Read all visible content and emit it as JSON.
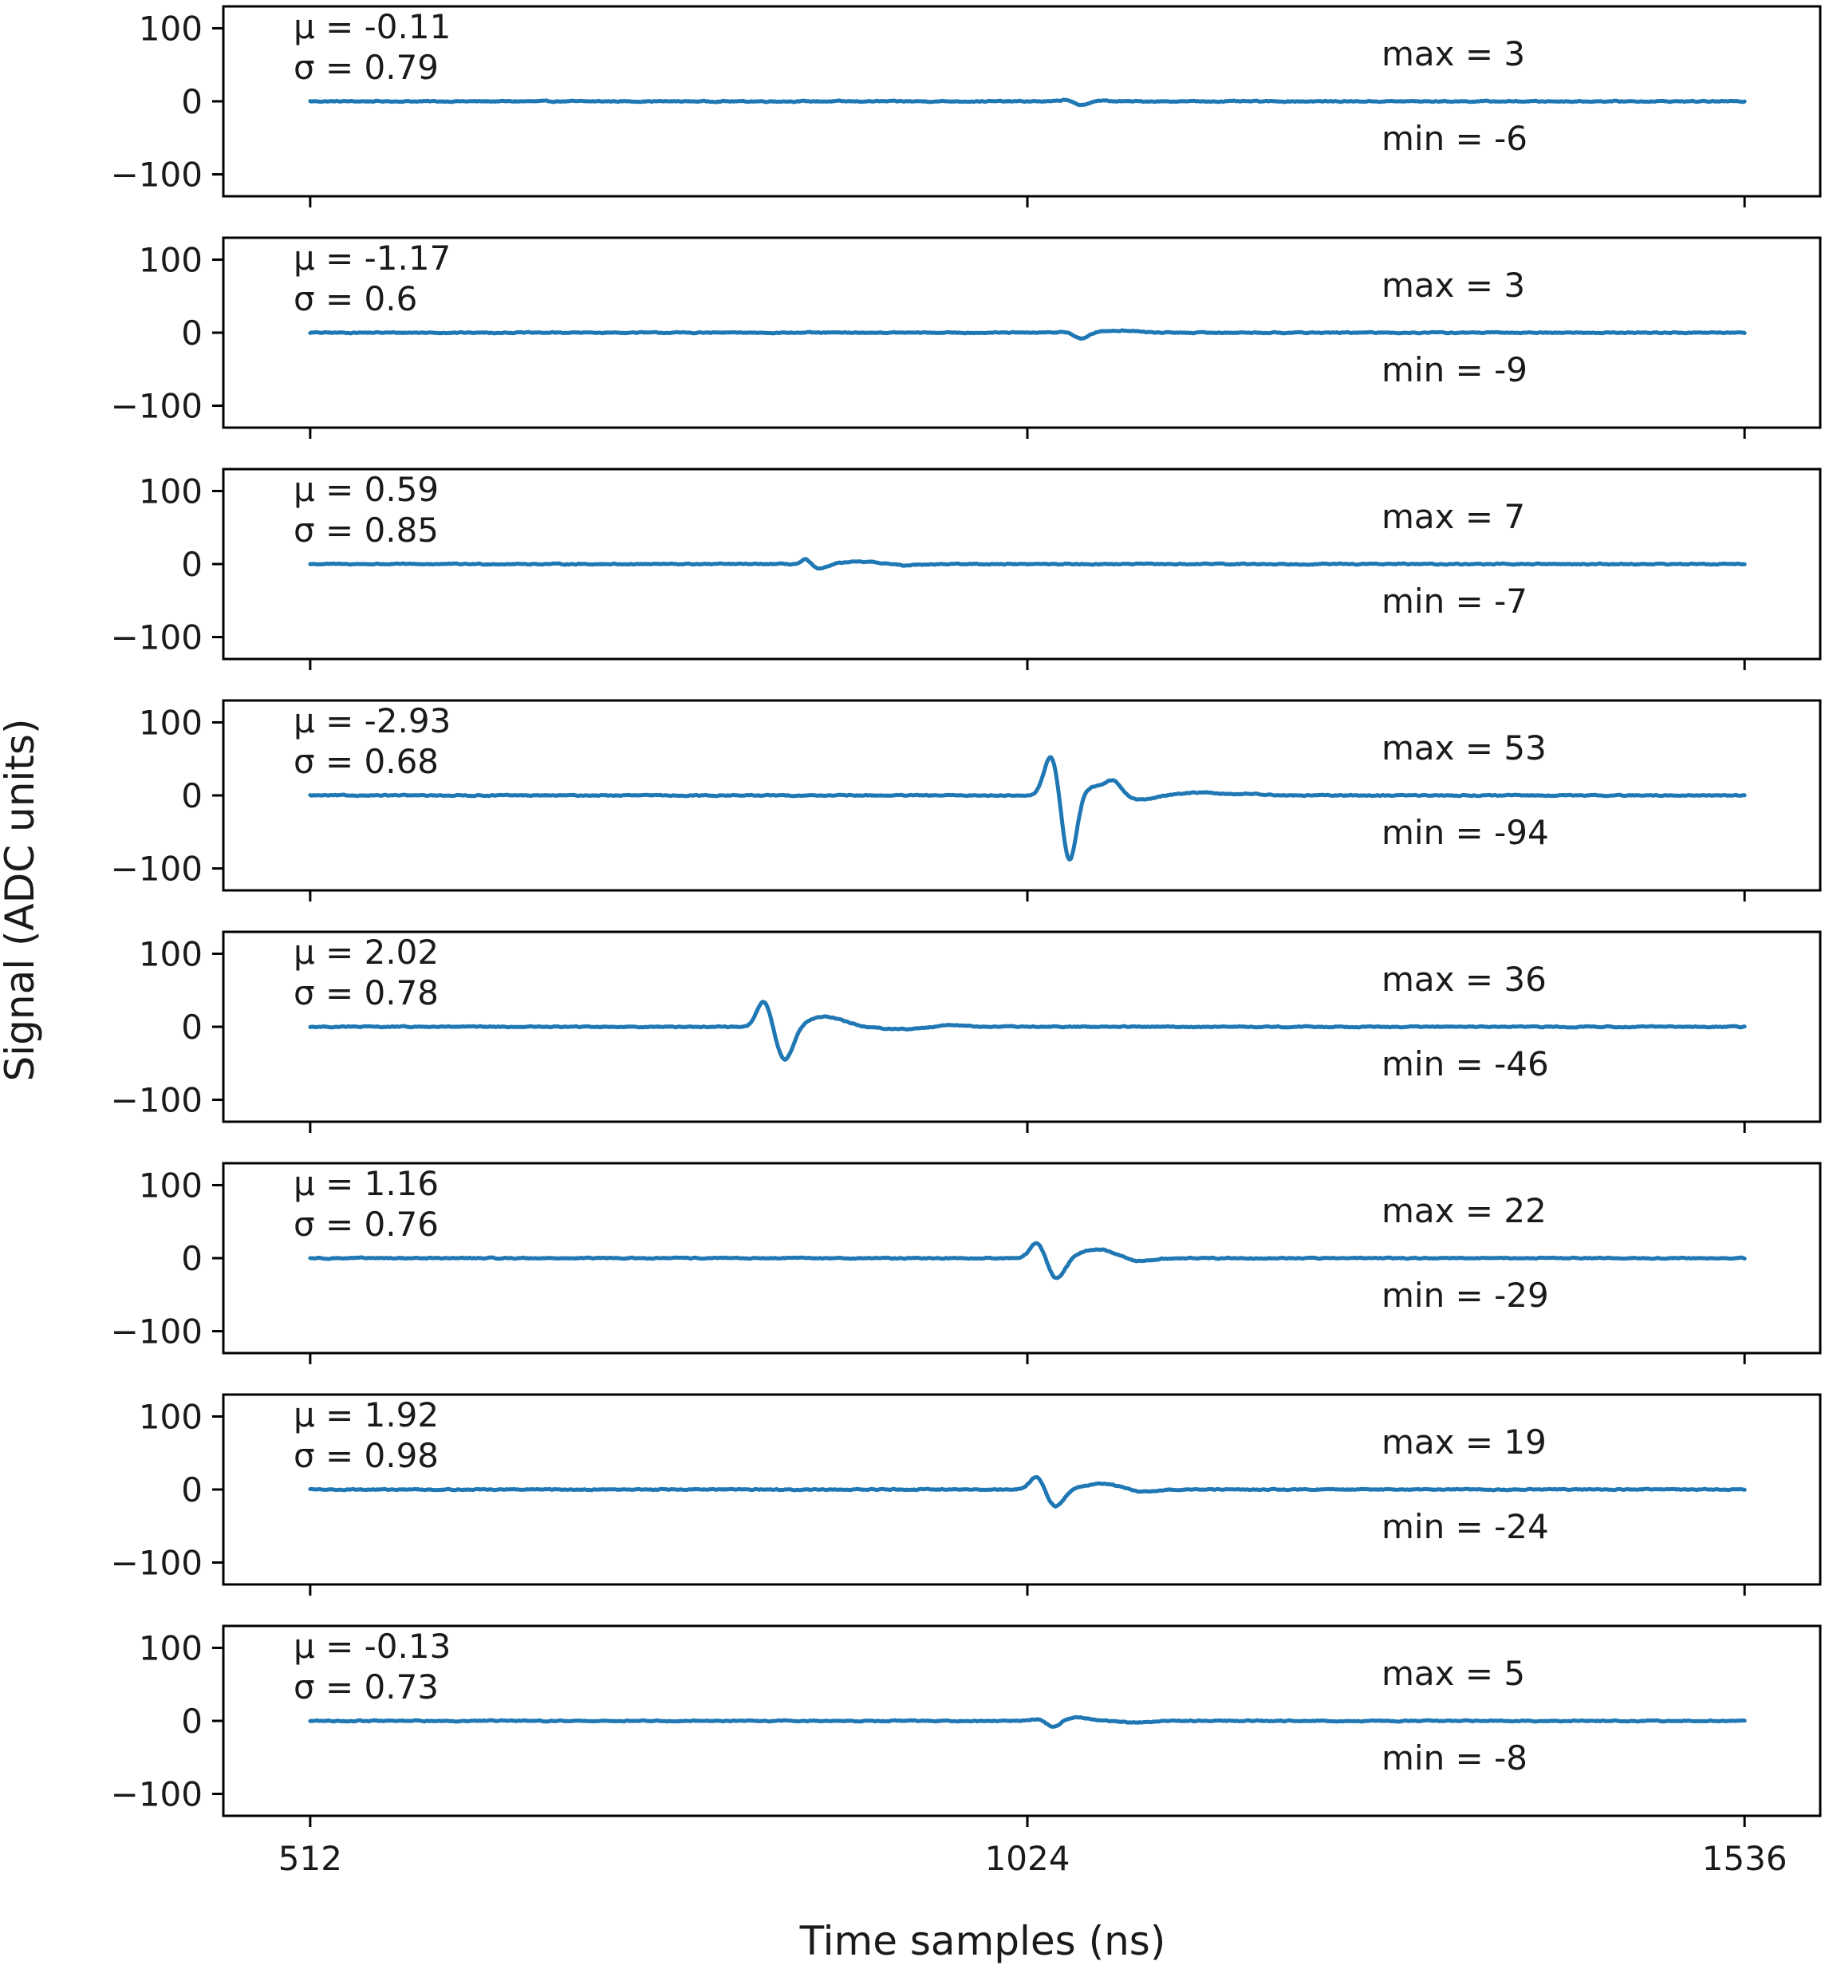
{
  "chart_data": {
    "type": "line",
    "layout": "8 stacked panels sharing x-axis",
    "xlabel": "Time samples (ns)",
    "ylabel": "Signal (ADC units)",
    "xlim": [
      450,
      1590
    ],
    "ylim": [
      -130,
      130
    ],
    "xticks": [
      512,
      1024,
      1536
    ],
    "xtick_labels": [
      "512",
      "1024",
      "1536"
    ],
    "yticks": [
      100,
      0,
      -100
    ],
    "ytick_labels": [
      "100",
      "0",
      "−100"
    ],
    "grid": false,
    "color": "#1f77b4",
    "panels": [
      {
        "mu_label": "μ = -0.11",
        "sigma_label": "σ = 0.79",
        "max_label": "max = 3",
        "min_label": "min = -6",
        "mu": -0.11,
        "sigma": 0.79,
        "max": 3,
        "min": -6,
        "baseline": 0,
        "pulses": [
          [
            1053,
            3,
            4
          ],
          [
            1062,
            -6,
            5
          ],
          [
            1074,
            1,
            6
          ]
        ]
      },
      {
        "mu_label": "μ = -1.17",
        "sigma_label": "σ = 0.6",
        "max_label": "max = 3",
        "min_label": "min = -9",
        "mu": -1.17,
        "sigma": 0.6,
        "max": 3,
        "min": -9,
        "baseline": 0,
        "pulses": [
          [
            1053,
            2,
            5
          ],
          [
            1062,
            -9,
            5
          ],
          [
            1090,
            3,
            12
          ]
        ]
      },
      {
        "mu_label": "μ = 0.59",
        "sigma_label": "σ = 0.85",
        "max_label": "max = 7",
        "min_label": "min = -7",
        "mu": 0.59,
        "sigma": 0.85,
        "max": 7,
        "min": -7,
        "baseline": 0,
        "pulses": [
          [
            866,
            7,
            3
          ],
          [
            876,
            -7,
            5
          ],
          [
            906,
            3,
            14
          ],
          [
            935,
            -2,
            8
          ]
        ]
      },
      {
        "mu_label": "μ = -2.93",
        "sigma_label": "σ = 0.68",
        "max_label": "max = 53",
        "min_label": "min = -94",
        "mu": -2.93,
        "sigma": 0.68,
        "max": 53,
        "min": -94,
        "baseline": 0,
        "pulses": [
          [
            1041,
            55,
            5
          ],
          [
            1054,
            -92,
            5
          ],
          [
            1075,
            13,
            11
          ],
          [
            1086,
            13,
            5
          ],
          [
            1105,
            -6,
            10
          ],
          [
            1147,
            4,
            15
          ],
          [
            1186,
            2,
            10
          ]
        ]
      },
      {
        "mu_label": "μ = 2.02",
        "sigma_label": "σ = 0.78",
        "max_label": "max = 36",
        "min_label": "min = -46",
        "mu": 2.02,
        "sigma": 0.78,
        "max": 36,
        "min": -46,
        "baseline": 0,
        "pulses": [
          [
            836,
            36,
            5
          ],
          [
            851,
            -46,
            6
          ],
          [
            880,
            14,
            13
          ],
          [
            935,
            -3,
            18
          ],
          [
            968,
            3,
            10
          ]
        ]
      },
      {
        "mu_label": "μ = 1.16",
        "sigma_label": "σ = 0.76",
        "max_label": "max = 22",
        "min_label": "min = -29",
        "mu": 1.16,
        "sigma": 0.76,
        "max": 22,
        "min": -29,
        "baseline": 0,
        "pulses": [
          [
            1031,
            22,
            5
          ],
          [
            1045,
            -29,
            6
          ],
          [
            1074,
            12,
            13
          ],
          [
            1103,
            -5,
            9
          ]
        ]
      },
      {
        "mu_label": "μ = 1.92",
        "sigma_label": "σ = 0.98",
        "max_label": "max = 19",
        "min_label": "min = -24",
        "mu": 1.92,
        "sigma": 0.98,
        "max": 19,
        "min": -24,
        "baseline": 0,
        "pulses": [
          [
            1031,
            19,
            5
          ],
          [
            1044,
            -24,
            6
          ],
          [
            1077,
            8,
            14
          ],
          [
            1105,
            -4,
            9
          ]
        ]
      },
      {
        "mu_label": "μ = -0.13",
        "sigma_label": "σ = 0.73",
        "max_label": "max = 5",
        "min_label": "min = -8",
        "mu": -0.13,
        "sigma": 0.73,
        "max": 5,
        "min": -8,
        "baseline": 0,
        "pulses": [
          [
            1032,
            3,
            5
          ],
          [
            1042,
            -8,
            5
          ],
          [
            1060,
            5,
            7
          ],
          [
            1100,
            -2,
            10
          ]
        ]
      }
    ]
  }
}
